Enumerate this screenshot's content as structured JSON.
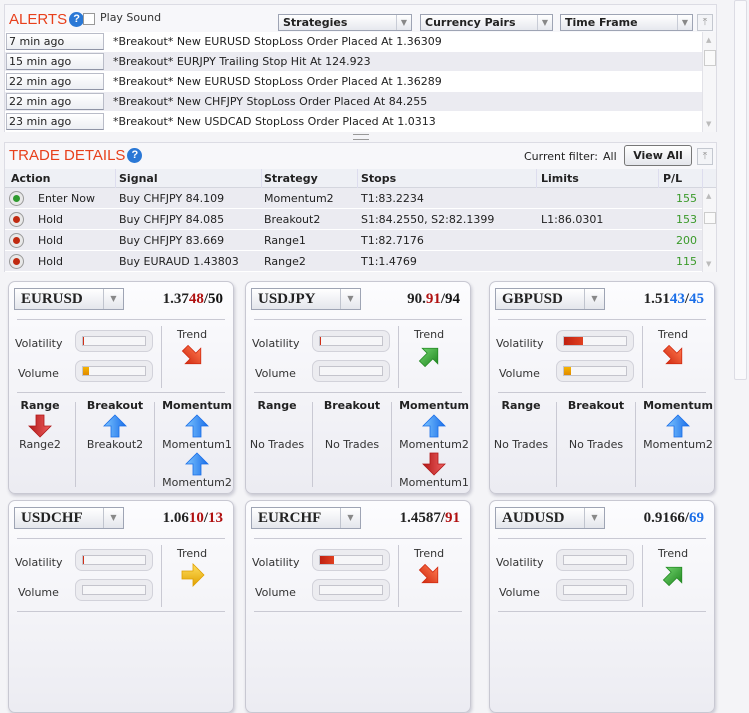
{
  "alerts": {
    "title": "ALERTS",
    "play_sound": "Play Sound",
    "play_sound_checked": false,
    "filters": [
      "Strategies",
      "Currency Pairs",
      "Time Frame"
    ],
    "items": [
      {
        "time": "7 min ago",
        "message": "*Breakout* New EURUSD StopLoss Order Placed At 1.36309"
      },
      {
        "time": "15 min ago",
        "message": "*Breakout* EURJPY Trailing Stop Hit At 124.923"
      },
      {
        "time": "22 min ago",
        "message": "*Breakout* New EURUSD StopLoss Order Placed At 1.36289"
      },
      {
        "time": "22 min ago",
        "message": "*Breakout* New CHFJPY StopLoss Order Placed At 84.255"
      },
      {
        "time": "23 min ago",
        "message": "*Breakout* New USDCAD StopLoss Order Placed At 1.0313"
      }
    ]
  },
  "trade": {
    "title": "TRADE DETAILS",
    "filter_label": "Current filter:",
    "filter_value": "All",
    "view_all": "View All",
    "columns": [
      "Action",
      "Signal",
      "Strategy",
      "Stops",
      "Limits",
      "P/L"
    ],
    "rows": [
      {
        "status": "green",
        "action": "Enter Now",
        "signal": "Buy CHFJPY 84.109",
        "strategy": "Momentum2",
        "stops": "T1:83.2234",
        "limits": "",
        "pl": "155"
      },
      {
        "status": "red",
        "action": "Hold",
        "signal": "Buy CHFJPY 84.085",
        "strategy": "Breakout2",
        "stops": "S1:84.2550, S2:82.1399",
        "limits": "L1:86.0301",
        "pl": "153"
      },
      {
        "status": "red",
        "action": "Hold",
        "signal": "Buy CHFJPY 83.669",
        "strategy": "Range1",
        "stops": "T1:82.7176",
        "limits": "",
        "pl": "200"
      },
      {
        "status": "red",
        "action": "Hold",
        "signal": "Buy EURAUD 1.43803",
        "strategy": "Range2",
        "stops": "T1:1.4769",
        "limits": "",
        "pl": "115"
      }
    ]
  },
  "labels": {
    "volatility": "Volatility",
    "volume": "Volume",
    "trend": "Trend",
    "range": "Range",
    "breakout": "Breakout",
    "momentum": "Momentum"
  },
  "colors": {
    "red": "#b01010",
    "blue": "#1a6ee8",
    "green_led": "#2e9a2e",
    "red_led": "#c02a10"
  },
  "cards": [
    {
      "pair": "EURUSD",
      "price_a": "1.37",
      "price_b": "48",
      "price_sep": "/",
      "price_c": "50",
      "b_color": "red",
      "c_color": "black",
      "volatility": 0.01,
      "volume": 0.1,
      "trend": "down-right",
      "trend_color": "red",
      "range": [
        {
          "dir": "down",
          "label": "Range2"
        }
      ],
      "breakout": [
        {
          "dir": "up",
          "label": "Breakout2"
        }
      ],
      "momentum": [
        {
          "dir": "up",
          "label": "Momentum1"
        },
        {
          "dir": "up",
          "label": "Momentum2"
        }
      ]
    },
    {
      "pair": "USDJPY",
      "price_a": "90.",
      "price_b": "91",
      "price_sep": "/",
      "price_c": "94",
      "b_color": "red",
      "c_color": "black",
      "volatility": 0.01,
      "volume": 0,
      "trend": "up-right",
      "trend_color": "green",
      "range": [
        {
          "dir": "none",
          "label": "No Trades"
        }
      ],
      "breakout": [
        {
          "dir": "none",
          "label": "No Trades"
        }
      ],
      "momentum": [
        {
          "dir": "up",
          "label": "Momentum2"
        },
        {
          "dir": "down",
          "label": "Momentum1"
        }
      ]
    },
    {
      "pair": "GBPUSD",
      "price_a": "1.51",
      "price_b": "43",
      "price_sep": "/",
      "price_c": "45",
      "b_color": "blue",
      "c_color": "blue",
      "volatility": 0.3,
      "volume": 0.12,
      "trend": "down-right",
      "trend_color": "red",
      "range": [
        {
          "dir": "none",
          "label": "No Trades"
        }
      ],
      "breakout": [
        {
          "dir": "none",
          "label": "No Trades"
        }
      ],
      "momentum": [
        {
          "dir": "up",
          "label": "Momentum2"
        }
      ]
    },
    {
      "pair": "USDCHF",
      "price_a": "1.06",
      "price_b": "10",
      "price_sep": "/",
      "price_c": "13",
      "b_color": "red",
      "c_color": "red",
      "volatility": 0.01,
      "volume": 0,
      "trend": "right",
      "trend_color": "yellow",
      "range": [],
      "breakout": [],
      "momentum": []
    },
    {
      "pair": "EURCHF",
      "price_a": "1.4587",
      "price_b": "",
      "price_sep": "/",
      "price_c": "91",
      "b_color": "red",
      "c_color": "red",
      "volatility": 0.22,
      "volume": 0,
      "trend": "down-right",
      "trend_color": "red",
      "range": [],
      "breakout": [],
      "momentum": []
    },
    {
      "pair": "AUDUSD",
      "price_a": "0.9166",
      "price_b": "",
      "price_sep": "/",
      "price_c": "69",
      "b_color": "blue",
      "c_color": "blue",
      "volatility": 0,
      "volume": 0,
      "trend": "up-right",
      "trend_color": "green",
      "range": [],
      "breakout": [],
      "momentum": []
    }
  ]
}
